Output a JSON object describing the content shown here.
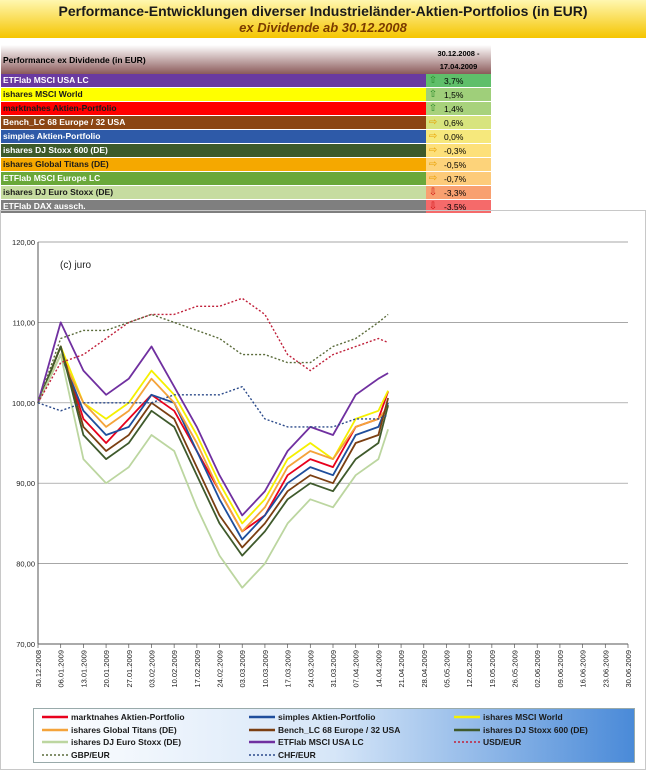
{
  "header": {
    "title": "Performance-Entwicklungen diverser Industrieländer-Aktien-Portfolios (in EUR)",
    "subtitle": "ex Dividende ab 30.12.2008"
  },
  "table": {
    "label": "Performance ex Dividende (in EUR)",
    "date_line1": "30.12.2008 -",
    "date_line2": "17.04.2009",
    "rows": [
      {
        "name": "ETFlab MSCI USA LC",
        "value": "3,7%",
        "trend": "up",
        "bg": "#6a3aa0",
        "fg": "#ffffff",
        "valbg": "#5fbf6a"
      },
      {
        "name": "ishares MSCI World",
        "value": "1,5%",
        "trend": "up",
        "bg": "#ffff00",
        "fg": "#1a1a1a",
        "valbg": "#9fcf7a"
      },
      {
        "name": "marktnahes Aktien-Portfolio",
        "value": "1,4%",
        "trend": "up",
        "bg": "#ff0000",
        "fg": "#1a1a1a",
        "valbg": "#a8d27c"
      },
      {
        "name": "Bench_LC  68 Europe / 32 USA",
        "value": "0,6%",
        "trend": "right",
        "bg": "#8b4513",
        "fg": "#ffffff",
        "valbg": "#d8e47e"
      },
      {
        "name": "simples Aktien-Portfolio",
        "value": "0,0%",
        "trend": "right",
        "bg": "#2e5aa8",
        "fg": "#ffffff",
        "valbg": "#f6e87c"
      },
      {
        "name": "ishares DJ Stoxx 600 (DE)",
        "value": "-0,3%",
        "trend": "right",
        "bg": "#3d5a2a",
        "fg": "#ffffff",
        "valbg": "#fde07a"
      },
      {
        "name": "ishares Global Titans (DE)",
        "value": "-0,5%",
        "trend": "right",
        "bg": "#f5a800",
        "fg": "#1a1a1a",
        "valbg": "#fdd37a"
      },
      {
        "name": "ETFlab MSCI Europe LC",
        "value": "-0,7%",
        "trend": "right",
        "bg": "#6aa83a",
        "fg": "#ffffff",
        "valbg": "#fdcb7a"
      },
      {
        "name": "ishares DJ Euro Stoxx (DE)",
        "value": "-3,3%",
        "trend": "down",
        "bg": "#c6dca0",
        "fg": "#1a1a1a",
        "valbg": "#f8a070"
      },
      {
        "name": "ETFlab DAX aussch.",
        "value": "-3,5%",
        "trend": "down",
        "bg": "#7f7f7f",
        "fg": "#ffffff",
        "valbg": "#f56a6a"
      }
    ]
  },
  "chart_data": {
    "type": "line",
    "annotation": "(c) juro",
    "ylim": [
      70,
      120
    ],
    "yticks": [
      "70,00",
      "80,00",
      "90,00",
      "100,00",
      "110,00",
      "120,00"
    ],
    "xticks": [
      "30.12.2008",
      "06.01.2009",
      "13.01.2009",
      "20.01.2009",
      "27.01.2009",
      "03.02.2009",
      "10.02.2009",
      "17.02.2009",
      "24.02.2009",
      "03.03.2009",
      "10.03.2009",
      "17.03.2009",
      "24.03.2009",
      "31.03.2009",
      "07.04.2009",
      "14.04.2009",
      "21.04.2009",
      "28.04.2009",
      "05.05.2009",
      "12.05.2009",
      "19.05.2009",
      "26.05.2009",
      "02.06.2009",
      "09.06.2009",
      "16.06.2009",
      "23.06.2009",
      "30.06.2009"
    ],
    "weekly_days": [
      0,
      7,
      14,
      21,
      28,
      35,
      42,
      49,
      56,
      63,
      70,
      77,
      84,
      91,
      98,
      105,
      108
    ],
    "series": [
      {
        "name": "marktnahes Aktien-Portfolio",
        "color": "#e8001c",
        "dash": "",
        "values": [
          100,
          107,
          98,
          95,
          98,
          101,
          99,
          94,
          89,
          84,
          86,
          91,
          93,
          92,
          97,
          98,
          101.4
        ]
      },
      {
        "name": "simples Aktien-Portfolio",
        "color": "#1f4e9c",
        "dash": "",
        "values": [
          100,
          106,
          99,
          96,
          97,
          101,
          100,
          94,
          88,
          83,
          86,
          90,
          92,
          91,
          96,
          97,
          100
        ]
      },
      {
        "name": "ishares MSCI World",
        "color": "#f5f000",
        "dash": "",
        "values": [
          100,
          107,
          100,
          98,
          100,
          104,
          101,
          96,
          90,
          85,
          88,
          93,
          95,
          93,
          98,
          99,
          101.5
        ]
      },
      {
        "name": "ishares Global Titans (DE)",
        "color": "#f4a33a",
        "dash": "",
        "values": [
          100,
          106,
          100,
          97,
          99,
          103,
          100,
          95,
          89,
          84,
          87,
          92,
          94,
          93,
          97,
          98,
          99.5
        ]
      },
      {
        "name": "Bench_LC  68 Europe / 32 USA",
        "color": "#7b3f12",
        "dash": "",
        "values": [
          100,
          107,
          97,
          94,
          96,
          100,
          98,
          92,
          86,
          82,
          85,
          89,
          91,
          90,
          95,
          96,
          100.6
        ]
      },
      {
        "name": "ishares DJ Stoxx 600 (DE)",
        "color": "#3f5a2c",
        "dash": "",
        "values": [
          100,
          107,
          96,
          93,
          95,
          99,
          97,
          91,
          85,
          81,
          84,
          88,
          90,
          89,
          93,
          95,
          99.7
        ]
      },
      {
        "name": "ishares DJ Euro Stoxx (DE)",
        "color": "#bcd6a0",
        "dash": "",
        "values": [
          100,
          106,
          93,
          90,
          92,
          96,
          94,
          87,
          81,
          77,
          80,
          85,
          88,
          87,
          91,
          93,
          96.7
        ]
      },
      {
        "name": "ETFlab MSCI USA LC",
        "color": "#7030a0",
        "dash": "",
        "values": [
          100,
          110,
          104,
          101,
          103,
          107,
          102,
          97,
          91,
          86,
          89,
          94,
          97,
          96,
          101,
          103,
          103.7
        ]
      },
      {
        "name": "USD/EUR",
        "color": "#c0203a",
        "dash": "2,2",
        "values": [
          100,
          105,
          106,
          108,
          110,
          111,
          111,
          112,
          112,
          113,
          111,
          106,
          104,
          106,
          107,
          108,
          107.5
        ]
      },
      {
        "name": "GBP/EUR",
        "color": "#5a6b3a",
        "dash": "2,2",
        "values": [
          100,
          108,
          109,
          109,
          110,
          111,
          110,
          109,
          108,
          106,
          106,
          105,
          105,
          107,
          108,
          110,
          111
        ]
      },
      {
        "name": "CHF/EUR",
        "color": "#2b4a8a",
        "dash": "2,2",
        "values": [
          100,
          99,
          100,
          100,
          100,
          100,
          101,
          101,
          101,
          102,
          98,
          97,
          97,
          97,
          98,
          98,
          98.5
        ]
      }
    ]
  }
}
